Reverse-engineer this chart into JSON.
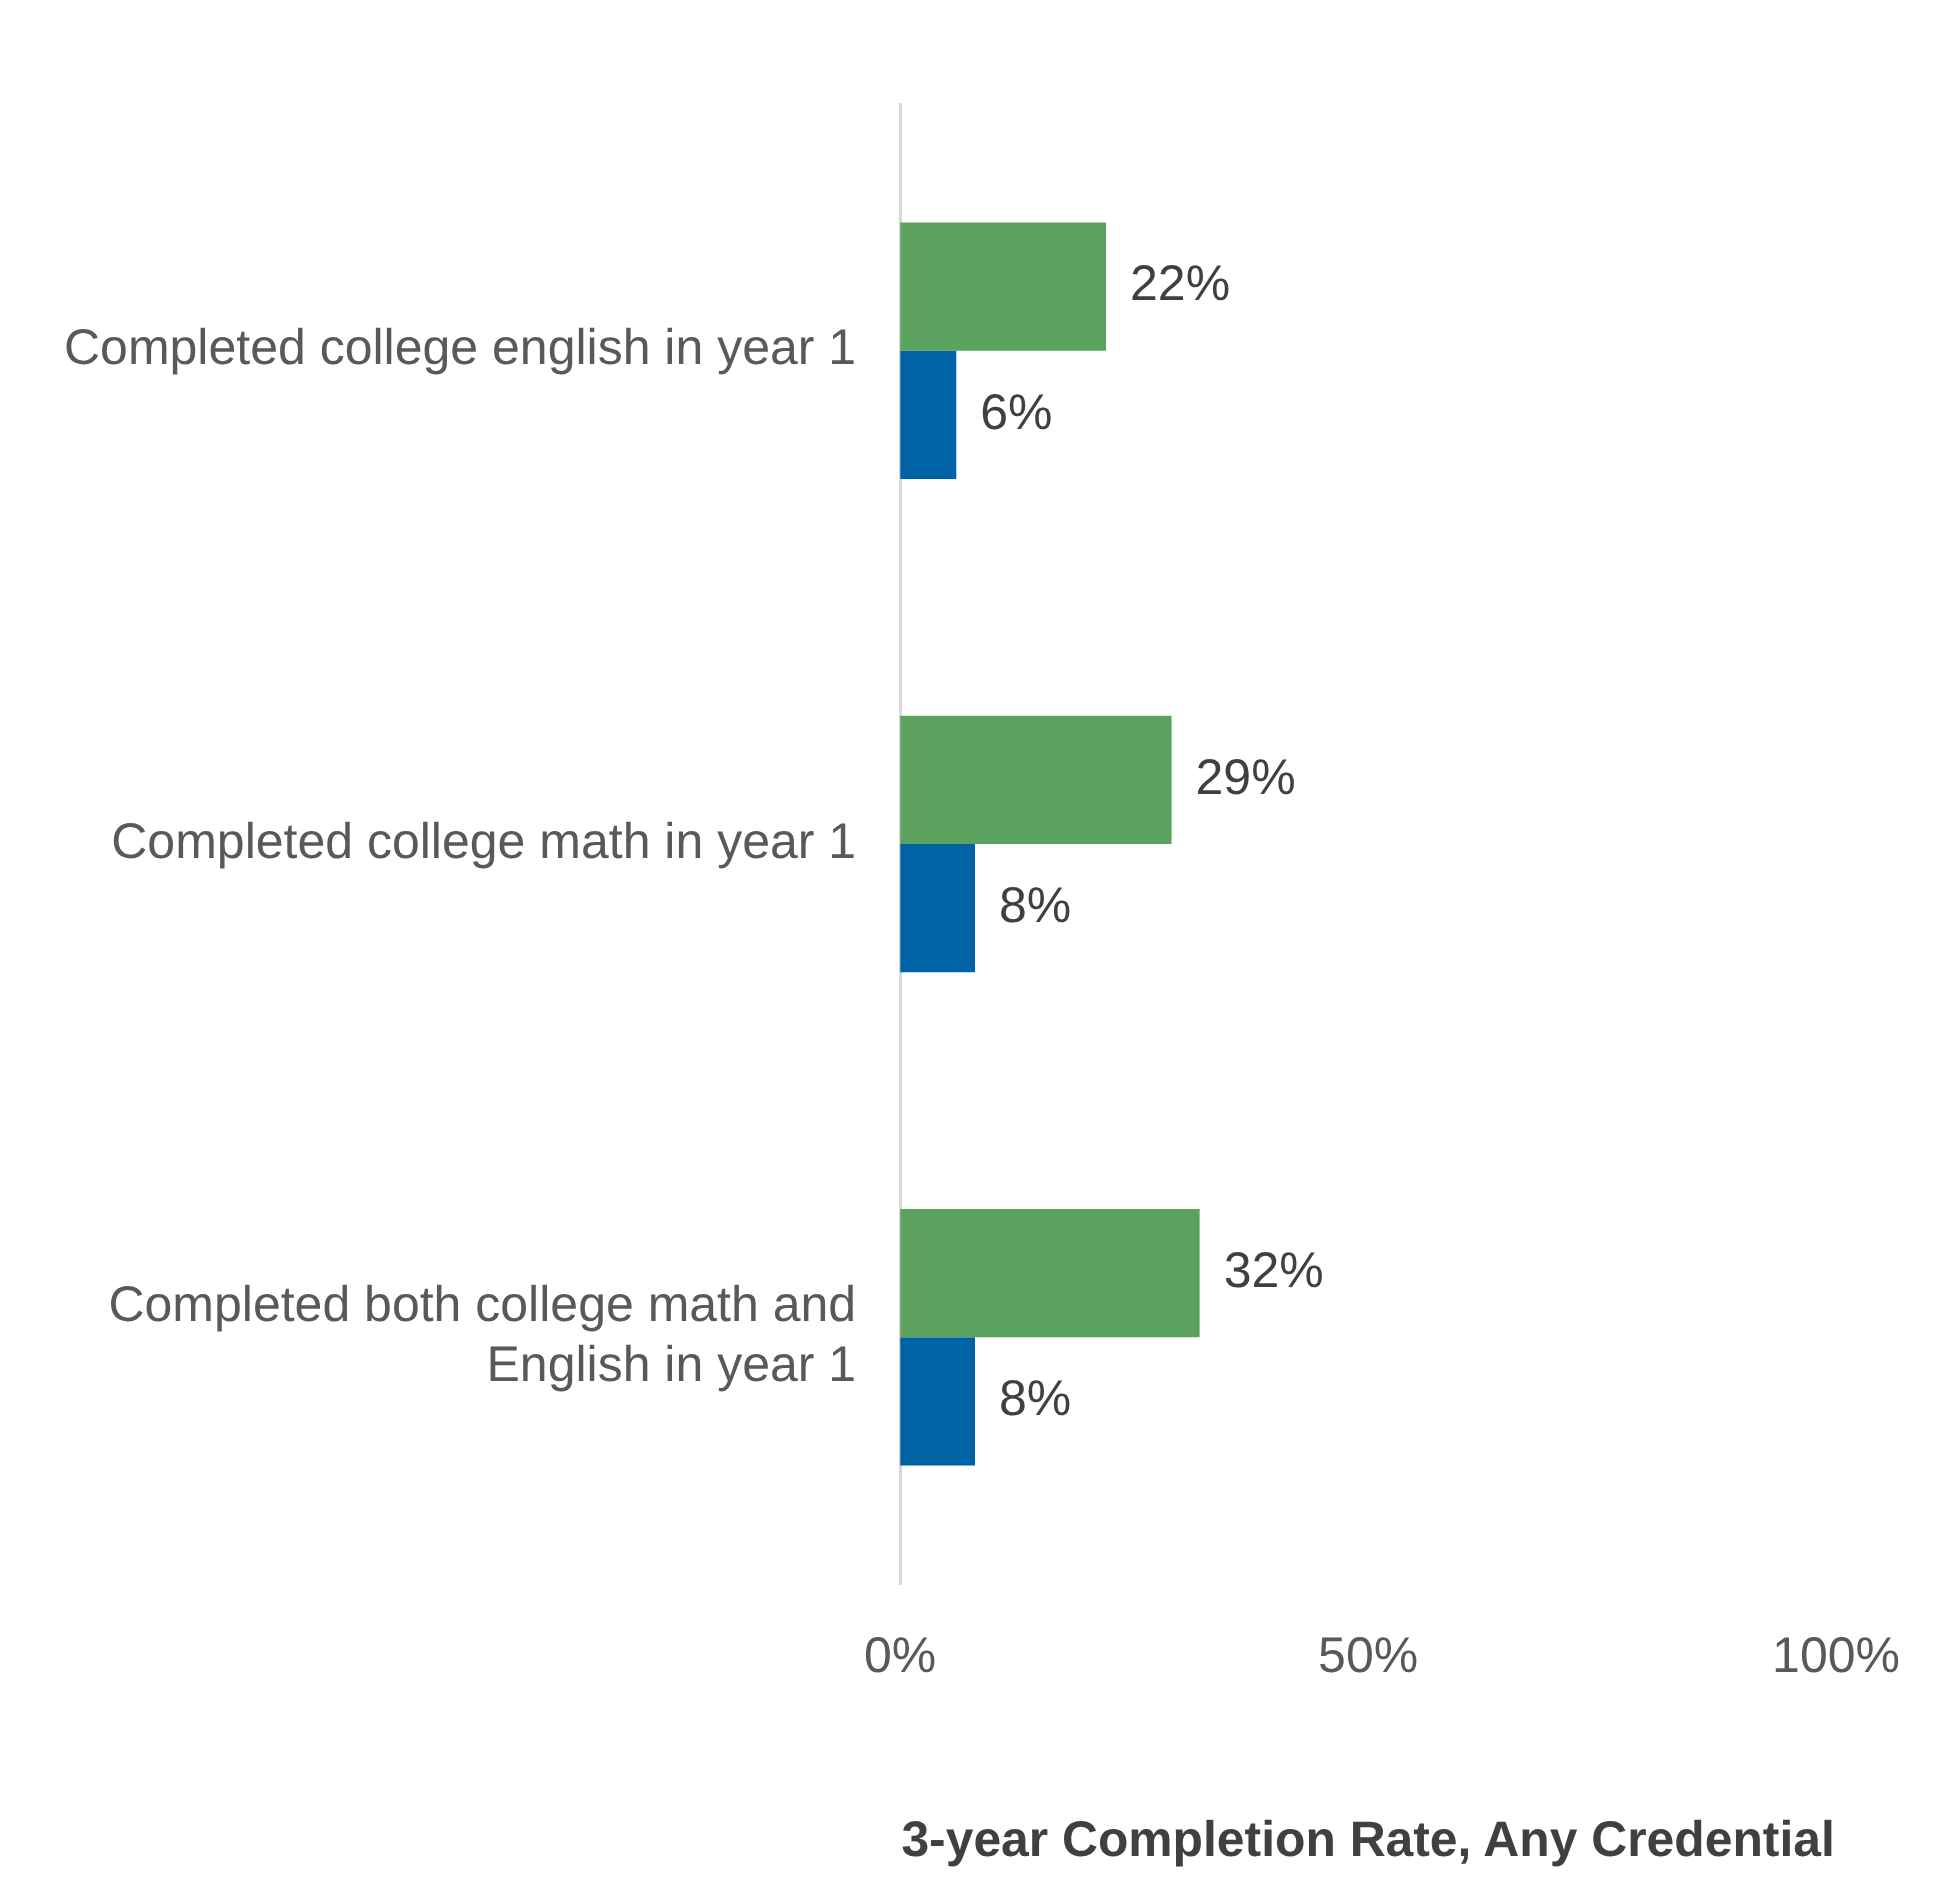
{
  "chart_data": {
    "type": "bar",
    "orientation": "horizontal",
    "categories": [
      "Completed college english in year 1",
      "Completed college math in year 1",
      "Completed both college math and English in year 1"
    ],
    "series": [
      {
        "color": "#5ba25f",
        "values": [
          22,
          29,
          32
        ],
        "value_labels": [
          "22%",
          "29%",
          "32%"
        ]
      },
      {
        "color": "#0063a6",
        "values": [
          6,
          8,
          8
        ],
        "value_labels": [
          "6%",
          "8%",
          "8%"
        ]
      }
    ],
    "xlim": [
      0,
      100
    ],
    "xticks": [
      {
        "value": 0,
        "label": "0%"
      },
      {
        "value": 50,
        "label": "50%"
      },
      {
        "value": 100,
        "label": "100%"
      }
    ],
    "xlabel": "3-year Completion Rate, Any Credential",
    "grid": false,
    "legend": false
  }
}
